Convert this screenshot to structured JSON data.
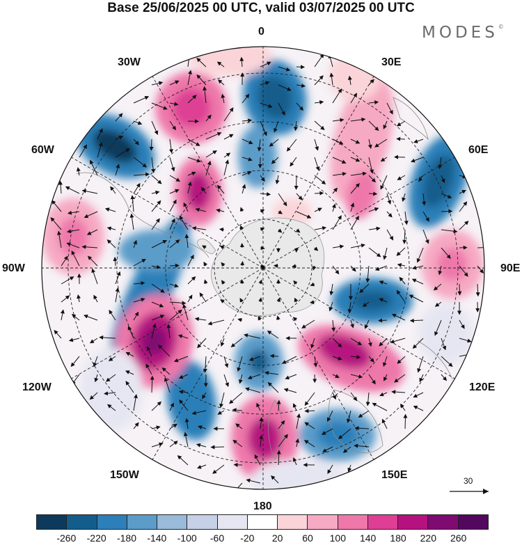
{
  "title": "Base 25/06/2025 00 UTC, valid 03/07/2025 00 UTC",
  "brand": {
    "text": "MODES",
    "mark": "©"
  },
  "map": {
    "projection": "south-polar-stereographic",
    "longitude_labels": {
      "top": "0",
      "top_right": "30E",
      "right_upper": "60E",
      "right": "90E",
      "right_lower": "120E",
      "bottom_right": "150E",
      "bottom": "180",
      "bottom_left": "150W",
      "left_lower": "120W",
      "left": "90W",
      "left_upper": "60W",
      "top_left": "30W"
    },
    "reference_vector": {
      "label": "30",
      "icon": "arrow-right-icon"
    }
  },
  "colorbar": {
    "ticks": [
      "-260",
      "-220",
      "-180",
      "-140",
      "-100",
      "-60",
      "-20",
      "20",
      "60",
      "100",
      "140",
      "180",
      "220",
      "260"
    ],
    "colors": [
      "#0d3a5c",
      "#135d8c",
      "#2c7fb8",
      "#5b9cc9",
      "#99bad8",
      "#c6d0e6",
      "#e6e6f2",
      "#ffffff",
      "#fad4d8",
      "#f6a9c2",
      "#ee78aa",
      "#de3f94",
      "#b5127f",
      "#7f0a72",
      "#54075e"
    ]
  }
}
